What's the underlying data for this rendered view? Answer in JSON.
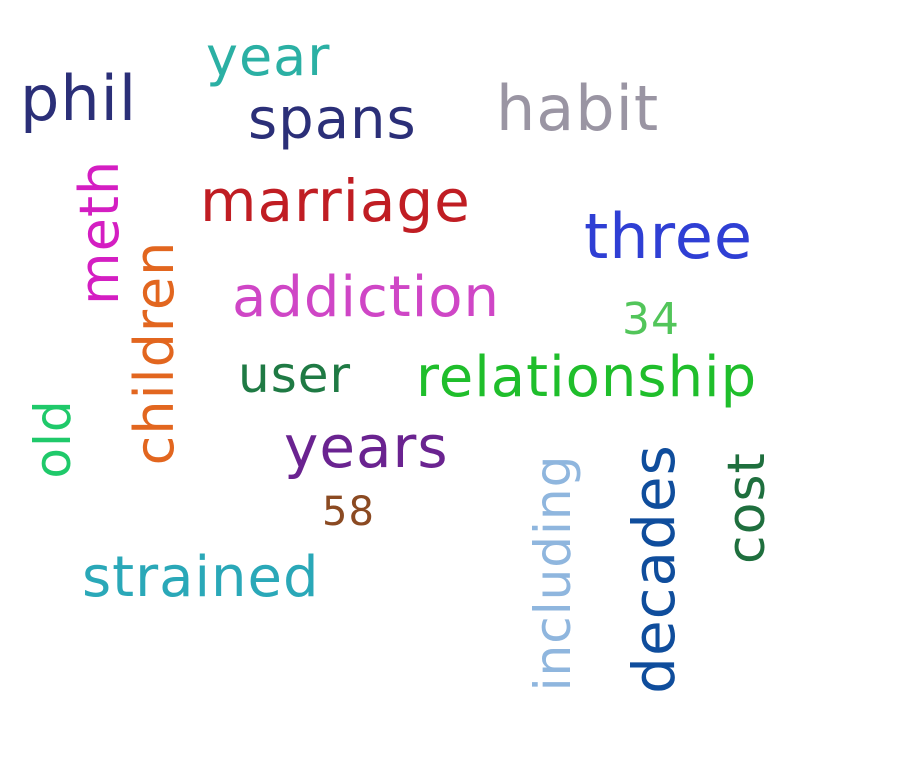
{
  "word_cloud": {
    "words": [
      {
        "id": "phil",
        "text": "phil",
        "color": "#2b2f78",
        "orientation": "horizontal"
      },
      {
        "id": "year",
        "text": "year",
        "color": "#2bb0a4",
        "orientation": "horizontal"
      },
      {
        "id": "spans",
        "text": "spans",
        "color": "#2b2f78",
        "orientation": "horizontal"
      },
      {
        "id": "habit",
        "text": "habit",
        "color": "#9a95a3",
        "orientation": "horizontal"
      },
      {
        "id": "meth",
        "text": "meth",
        "color": "#d41ec2",
        "orientation": "vertical"
      },
      {
        "id": "marriage",
        "text": "marriage",
        "color": "#c01d23",
        "orientation": "horizontal"
      },
      {
        "id": "three",
        "text": "three",
        "color": "#2f3fd4",
        "orientation": "horizontal"
      },
      {
        "id": "children",
        "text": "children",
        "color": "#e2661f",
        "orientation": "vertical"
      },
      {
        "id": "addiction",
        "text": "addiction",
        "color": "#cf46c6",
        "orientation": "horizontal"
      },
      {
        "id": "34",
        "text": "34",
        "color": "#52c55a",
        "orientation": "horizontal"
      },
      {
        "id": "user",
        "text": "user",
        "color": "#1f7a44",
        "orientation": "horizontal"
      },
      {
        "id": "relationship",
        "text": "relationship",
        "color": "#1fbe2b",
        "orientation": "horizontal"
      },
      {
        "id": "old",
        "text": "old",
        "color": "#1fc96a",
        "orientation": "vertical"
      },
      {
        "id": "years",
        "text": "years",
        "color": "#6a2390",
        "orientation": "horizontal"
      },
      {
        "id": "58",
        "text": "58",
        "color": "#8b4a22",
        "orientation": "horizontal"
      },
      {
        "id": "including",
        "text": "including",
        "color": "#8fb6de",
        "orientation": "vertical"
      },
      {
        "id": "decades",
        "text": "decades",
        "color": "#0f4d9c",
        "orientation": "vertical"
      },
      {
        "id": "cost",
        "text": "cost",
        "color": "#1f6f3e",
        "orientation": "vertical"
      },
      {
        "id": "strained",
        "text": "strained",
        "color": "#2aa8b8",
        "orientation": "horizontal"
      }
    ]
  }
}
